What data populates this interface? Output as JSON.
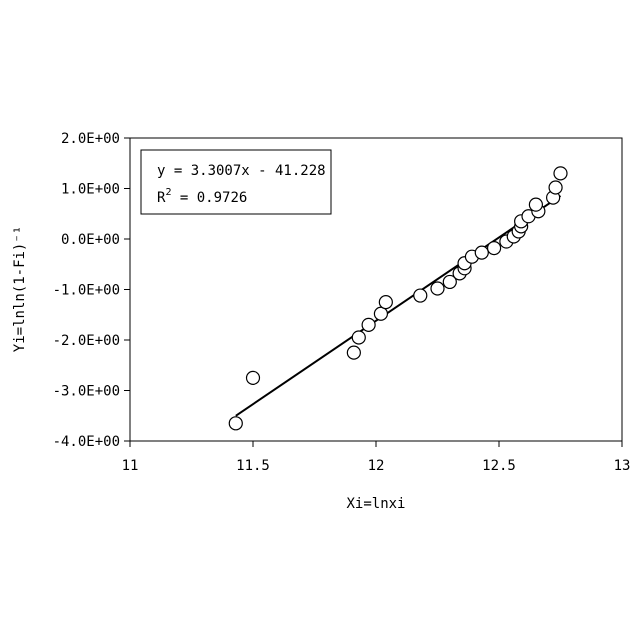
{
  "chart_data": {
    "type": "scatter",
    "title": "",
    "xlabel": "Xi=lnxi",
    "ylabel": "Yi=lnln(1-Fi)⁻¹",
    "xlim": [
      11,
      13
    ],
    "ylim": [
      -4,
      2
    ],
    "x_ticks": [
      11,
      11.5,
      12,
      12.5,
      13
    ],
    "x_tick_labels": [
      "11",
      "11.5",
      "12",
      "12.5",
      "13"
    ],
    "y_ticks": [
      -4,
      -3,
      -2,
      -1,
      0,
      1,
      2
    ],
    "y_tick_labels": [
      "-4.0E+00",
      "-3.0E+00",
      "-2.0E+00",
      "-1.0E+00",
      "0.0E+00",
      "1.0E+00",
      "2.0E+00"
    ],
    "grid": false,
    "points": [
      {
        "x": 11.43,
        "y": -3.65
      },
      {
        "x": 11.5,
        "y": -2.75
      },
      {
        "x": 11.91,
        "y": -2.25
      },
      {
        "x": 11.93,
        "y": -1.95
      },
      {
        "x": 11.97,
        "y": -1.7
      },
      {
        "x": 12.02,
        "y": -1.48
      },
      {
        "x": 12.04,
        "y": -1.25
      },
      {
        "x": 12.18,
        "y": -1.12
      },
      {
        "x": 12.25,
        "y": -0.98
      },
      {
        "x": 12.3,
        "y": -0.85
      },
      {
        "x": 12.34,
        "y": -0.68
      },
      {
        "x": 12.36,
        "y": -0.58
      },
      {
        "x": 12.36,
        "y": -0.48
      },
      {
        "x": 12.39,
        "y": -0.35
      },
      {
        "x": 12.43,
        "y": -0.27
      },
      {
        "x": 12.48,
        "y": -0.18
      },
      {
        "x": 12.53,
        "y": -0.05
      },
      {
        "x": 12.56,
        "y": 0.05
      },
      {
        "x": 12.58,
        "y": 0.15
      },
      {
        "x": 12.59,
        "y": 0.25
      },
      {
        "x": 12.59,
        "y": 0.35
      },
      {
        "x": 12.62,
        "y": 0.45
      },
      {
        "x": 12.66,
        "y": 0.55
      },
      {
        "x": 12.65,
        "y": 0.68
      },
      {
        "x": 12.72,
        "y": 0.82
      },
      {
        "x": 12.73,
        "y": 1.02
      },
      {
        "x": 12.75,
        "y": 1.3
      }
    ],
    "trendline": {
      "slope": 3.3007,
      "intercept": -41.228,
      "x_range": [
        11.43,
        12.75
      ]
    },
    "equation_text": "y = 3.3007x - 41.228",
    "r2_label": "R",
    "r2_superscript": "2",
    "r2_value_text": " = 0.9726"
  }
}
